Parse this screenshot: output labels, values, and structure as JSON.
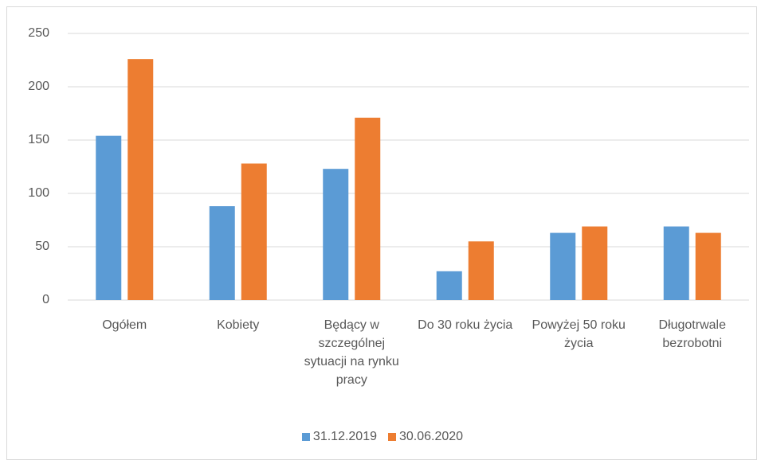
{
  "chart_data": {
    "type": "bar",
    "categories": [
      "Ogółem",
      "Kobiety",
      "Będący w szczególnej sytuacji na rynku pracy",
      "Do 30 roku życia",
      "Powyżej 50 roku życia",
      "Długotrwale bezrobotni"
    ],
    "series": [
      {
        "name": "31.12.2019",
        "color": "#5b9bd5",
        "values": [
          154,
          88,
          123,
          27,
          63,
          69
        ]
      },
      {
        "name": "30.06.2020",
        "color": "#ed7d31",
        "values": [
          226,
          128,
          171,
          55,
          69,
          63
        ]
      }
    ],
    "ylim": [
      0,
      250
    ],
    "yticks": [
      0,
      50,
      100,
      150,
      200,
      250
    ],
    "grid": true,
    "legend": "bottom"
  }
}
